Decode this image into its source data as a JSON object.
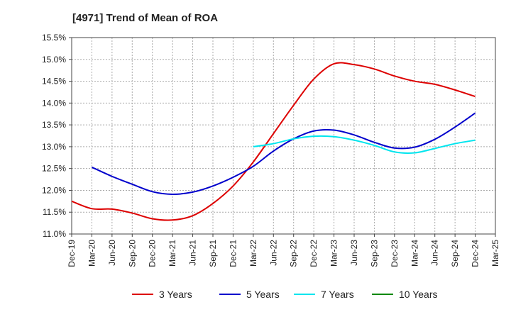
{
  "chart_data": {
    "type": "line",
    "title": "[4971]  Trend of Mean of ROA",
    "xlabel": "",
    "ylabel": "",
    "ylim": [
      11.0,
      15.5
    ],
    "yticks": [
      11.0,
      11.5,
      12.0,
      12.5,
      13.0,
      13.5,
      14.0,
      14.5,
      15.0,
      15.5
    ],
    "ytick_labels": [
      "11.0%",
      "11.5%",
      "12.0%",
      "12.5%",
      "13.0%",
      "13.5%",
      "14.0%",
      "14.5%",
      "15.0%",
      "15.5%"
    ],
    "categories": [
      "Dec-19",
      "Mar-20",
      "Jun-20",
      "Sep-20",
      "Dec-20",
      "Mar-21",
      "Jun-21",
      "Sep-21",
      "Dec-21",
      "Mar-22",
      "Jun-22",
      "Sep-22",
      "Dec-22",
      "Mar-23",
      "Jun-23",
      "Sep-23",
      "Dec-23",
      "Mar-24",
      "Jun-24",
      "Sep-24",
      "Dec-24",
      "Mar-25"
    ],
    "grid": true,
    "legend_position": "bottom",
    "series": [
      {
        "name": "3 Years",
        "color": "#dd0000",
        "values": [
          11.75,
          11.58,
          11.57,
          11.48,
          11.35,
          11.32,
          11.42,
          11.7,
          12.1,
          12.65,
          13.3,
          13.95,
          14.55,
          14.9,
          14.88,
          14.78,
          14.62,
          14.5,
          14.43,
          14.3,
          14.15,
          null
        ]
      },
      {
        "name": "5 Years",
        "color": "#0000cc",
        "values": [
          null,
          12.53,
          12.32,
          12.14,
          11.97,
          11.91,
          11.96,
          12.1,
          12.3,
          12.55,
          12.9,
          13.18,
          13.36,
          13.38,
          13.27,
          13.1,
          12.97,
          12.99,
          13.17,
          13.45,
          13.77,
          null
        ]
      },
      {
        "name": "7 Years",
        "color": "#00e5ee",
        "values": [
          null,
          null,
          null,
          null,
          null,
          null,
          null,
          null,
          null,
          13.0,
          13.07,
          13.18,
          13.24,
          13.23,
          13.15,
          13.03,
          12.88,
          12.86,
          12.96,
          13.07,
          13.15,
          null
        ]
      },
      {
        "name": "10 Years",
        "color": "#008800",
        "values": [
          null,
          null,
          null,
          null,
          null,
          null,
          null,
          null,
          null,
          null,
          null,
          null,
          null,
          null,
          null,
          null,
          null,
          null,
          null,
          null,
          null,
          null
        ]
      }
    ]
  }
}
